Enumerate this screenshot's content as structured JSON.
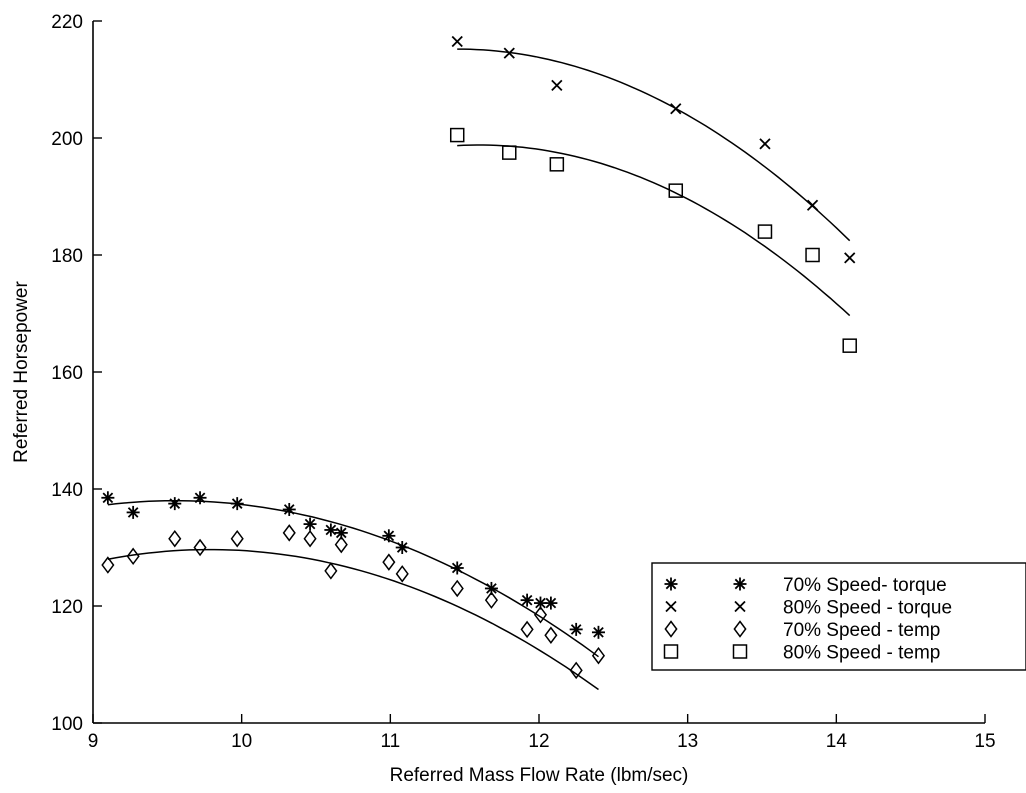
{
  "chart_data": {
    "type": "scatter",
    "title": "",
    "xlabel": "Referred Mass Flow Rate (lbm/sec)",
    "ylabel": "Referred Horsepower",
    "xlim": [
      9,
      15
    ],
    "ylim": [
      100,
      220
    ],
    "xticks": [
      9,
      10,
      11,
      12,
      13,
      14,
      15
    ],
    "yticks": [
      100,
      120,
      140,
      160,
      180,
      200,
      220
    ],
    "grid": false,
    "legend_position": "bottom-right",
    "series": [
      {
        "name": "70% Speed- torque",
        "marker": "asterisk",
        "x": [
          9.1,
          9.27,
          9.55,
          9.72,
          9.97,
          10.32,
          10.46,
          10.6,
          10.67,
          10.99,
          11.08,
          11.45,
          11.68,
          11.92,
          12.01,
          12.08,
          12.25,
          12.4
        ],
        "y": [
          138.5,
          136,
          137.5,
          138.5,
          137.5,
          136.5,
          134,
          133,
          132.5,
          132,
          130,
          126.5,
          123,
          121,
          120.5,
          120.5,
          116,
          115.5
        ],
        "fit": {
          "x0": 9.1,
          "x1": 12.4,
          "coef": [
            138.0,
            0.05,
            -3.3
          ],
          "xc": 9.55
        }
      },
      {
        "name": "80% Speed - torque",
        "marker": "x",
        "x": [
          11.45,
          11.8,
          12.12,
          12.92,
          13.52,
          13.84,
          14.09
        ],
        "y": [
          216.5,
          214.5,
          209,
          205,
          199,
          188.5,
          179.5
        ],
        "fit": {
          "x0": 11.45,
          "x1": 14.09,
          "coef": [
            215.2,
            0.0,
            -4.7
          ],
          "xc": 11.45
        }
      },
      {
        "name": "70% Speed - temp",
        "marker": "diamond",
        "x": [
          9.1,
          9.27,
          9.55,
          9.72,
          9.97,
          10.32,
          10.46,
          10.6,
          10.67,
          10.99,
          11.08,
          11.45,
          11.68,
          11.92,
          12.01,
          12.08,
          12.25,
          12.4
        ],
        "y": [
          127,
          128.5,
          131.5,
          130,
          131.5,
          132.5,
          131.5,
          126,
          130.5,
          127.5,
          125.5,
          123,
          121,
          116,
          118.5,
          115,
          109,
          111.5
        ],
        "fit": {
          "x0": 9.1,
          "x1": 12.4,
          "coef": [
            128.0,
            4.8,
            -3.5
          ],
          "xc": 9.1
        }
      },
      {
        "name": "80% Speed - temp",
        "marker": "square",
        "x": [
          11.45,
          11.8,
          12.12,
          12.92,
          13.52,
          13.84,
          14.09
        ],
        "y": [
          200.5,
          197.5,
          195.5,
          191,
          184,
          180,
          164.5
        ],
        "fit": {
          "x0": 11.45,
          "x1": 14.09,
          "coef": [
            198.7,
            1.4,
            -4.7
          ],
          "xc": 11.45
        }
      }
    ]
  }
}
